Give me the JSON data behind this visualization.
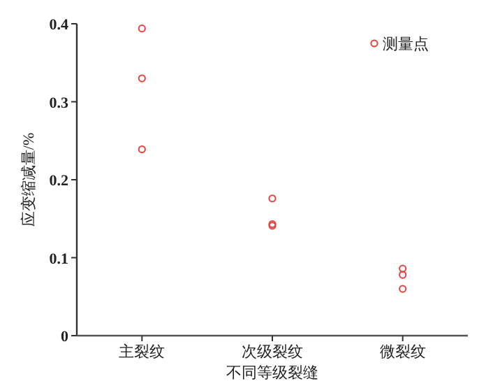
{
  "chart_data": {
    "type": "scatter",
    "xlabel": "不同等级裂缝",
    "ylabel": "应变缩减量/%",
    "categories": [
      "主裂纹",
      "次级裂纹",
      "微裂纹"
    ],
    "series": [
      {
        "name": "测量点",
        "color": "#e8413c",
        "x": [
          "主裂纹",
          "主裂纹",
          "主裂纹",
          "次级裂纹",
          "次级裂纹",
          "次级裂纹",
          "微裂纹",
          "微裂纹",
          "微裂纹"
        ],
        "values": [
          0.394,
          0.33,
          0.239,
          0.176,
          0.143,
          0.141,
          0.086,
          0.078,
          0.06
        ]
      }
    ],
    "ylim": [
      0,
      0.4
    ],
    "yticks": [
      0,
      0.1,
      0.2,
      0.3,
      0.4
    ],
    "marker": "circle",
    "legend": "top right",
    "grid": false
  }
}
